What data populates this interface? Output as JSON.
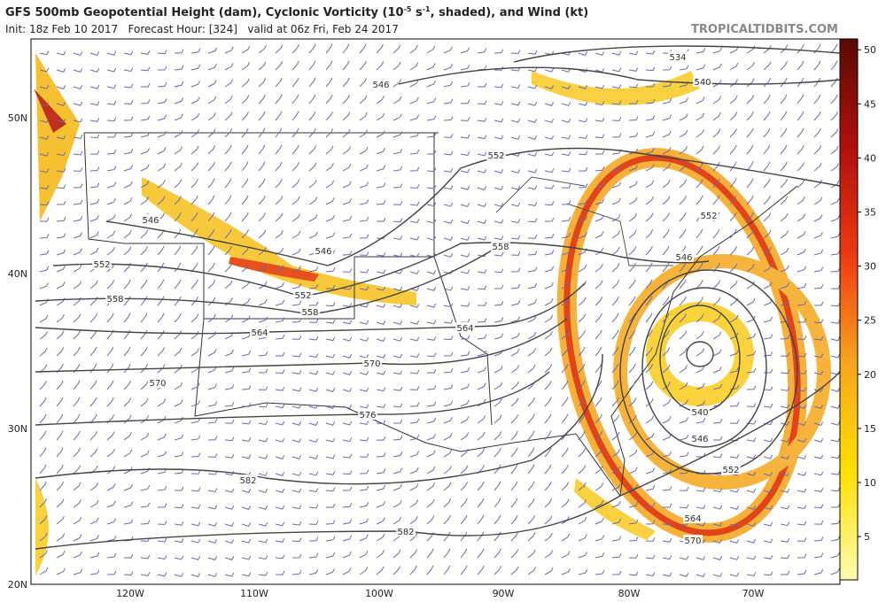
{
  "header": {
    "title_parts": [
      "GFS 500mb Geopotential Height (dam), Cyclonic Vorticity (10",
      "-5",
      " s",
      "-1",
      ", shaded), and Wind (kt)"
    ],
    "subtitle": "Init: 18z Feb 10 2017   Forecast Hour: [324]   valid at 06z Fri, Feb 24 2017",
    "brand": "TROPICALTIDBITS.COM"
  },
  "map": {
    "lat_labels": [
      "50N",
      "40N",
      "30N",
      "20N"
    ],
    "lon_labels": [
      "120W",
      "110W",
      "100W",
      "90W",
      "80W",
      "70W"
    ],
    "contour_labels": [
      534,
      540,
      546,
      552,
      552,
      546,
      552,
      558,
      546,
      546,
      558,
      552,
      558,
      564,
      564,
      570,
      570,
      576,
      540,
      546,
      552,
      582,
      582,
      564,
      570
    ]
  },
  "colorbar": {
    "range": [
      1,
      51
    ],
    "ticks": [
      5,
      10,
      15,
      20,
      25,
      30,
      35,
      40,
      45,
      50
    ]
  }
}
